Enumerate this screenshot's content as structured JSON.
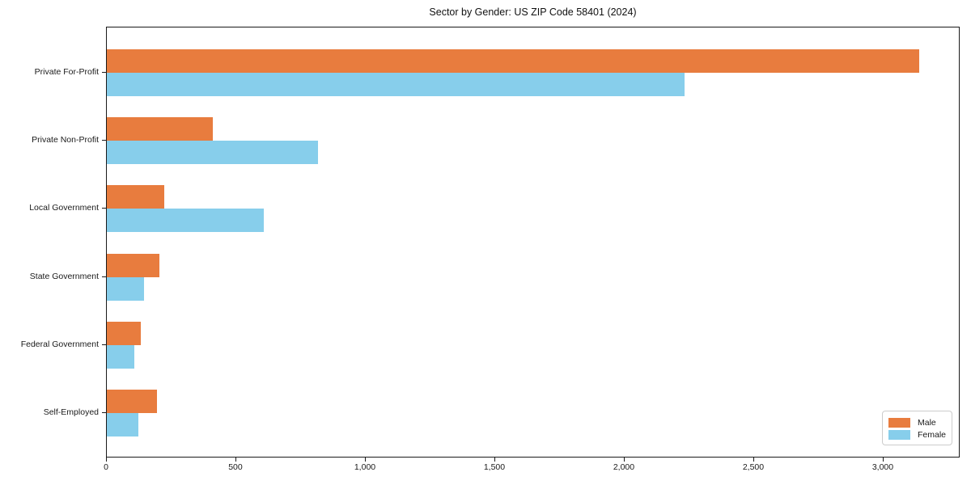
{
  "chart_data": {
    "type": "bar",
    "orientation": "horizontal",
    "title": "Sector by Gender: US ZIP Code 58401 (2024)",
    "xlabel": "",
    "ylabel": "",
    "categories": [
      "Private For-Profit",
      "Private Non-Profit",
      "Local Government",
      "State Government",
      "Federal Government",
      "Self-Employed"
    ],
    "series": [
      {
        "name": "Male",
        "color": "#e87c3e",
        "values": [
          3138,
          409,
          222,
          203,
          130,
          194
        ]
      },
      {
        "name": "Female",
        "color": "#87ceeb",
        "values": [
          2231,
          816,
          606,
          144,
          105,
          121
        ]
      }
    ],
    "xlim": [
      0,
      3297
    ],
    "xticks": [
      0,
      500,
      1000,
      1500,
      2000,
      2500,
      3000
    ],
    "xtick_labels": [
      "0",
      "500",
      "1,000",
      "1,500",
      "2,000",
      "2,500",
      "3,000"
    ],
    "grid": false,
    "legend": {
      "position": "lower right",
      "entries": [
        "Male",
        "Female"
      ]
    }
  },
  "colors": {
    "male": "#e87c3e",
    "female": "#87ceeb",
    "spine": "#1a1a1a",
    "background": "#ffffff",
    "legend_border": "#cccccc"
  }
}
